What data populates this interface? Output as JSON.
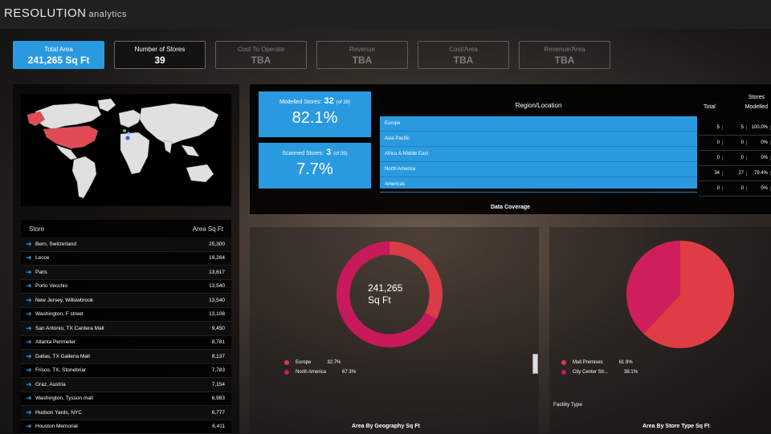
{
  "app": {
    "brand_main": "RESOLUTION",
    "brand_sub": "analytics"
  },
  "kpis": [
    {
      "label": "Total Area",
      "value": "241,265 Sq Ft"
    },
    {
      "label": "Number of Stores",
      "value": "39"
    },
    {
      "label": "Cost To Operate",
      "value": "TBA"
    },
    {
      "label": "Revenue",
      "value": "TBA"
    },
    {
      "label": "Cost/Area",
      "value": "TBA"
    },
    {
      "label": "Revenue/Area",
      "value": "TBA"
    }
  ],
  "map": {
    "highlight_color": "#e24b55",
    "land_color": "#e0e0e0"
  },
  "stores": {
    "col_store": "Store",
    "col_area": "Area Sq Ft",
    "rows": [
      {
        "name": "Bern, Switzerland",
        "area": "25,300"
      },
      {
        "name": "Lecce",
        "area": "19,264"
      },
      {
        "name": "Paris",
        "area": "13,617"
      },
      {
        "name": "Porto Vecchio",
        "area": "13,540"
      },
      {
        "name": "New Jersey, Willowbrook",
        "area": "13,540"
      },
      {
        "name": "Washington, F street",
        "area": "13,108"
      },
      {
        "name": "San Antonio, TX Cantera Mall",
        "area": "9,450"
      },
      {
        "name": "Atlanta Perimeter",
        "area": "8,781"
      },
      {
        "name": "Dallas, TX Galleria Mall",
        "area": "8,137"
      },
      {
        "name": "Frisco, TX, Stonebriar",
        "area": "7,783"
      },
      {
        "name": "Graz, Austria",
        "area": "7,154"
      },
      {
        "name": "Washington, Tysson mall",
        "area": "6,983"
      },
      {
        "name": "Hudson Yards, NYC",
        "area": "6,777"
      },
      {
        "name": "Houston Memorial",
        "area": "6,411"
      }
    ]
  },
  "coverage": {
    "modelled": {
      "label": "Modelled Stores:",
      "count": "32",
      "of": "(of 39)",
      "pct": "82.1%"
    },
    "scanned": {
      "label": "Scanned Stores:",
      "count": "3",
      "of": "(of 39)",
      "pct": "7.7%"
    },
    "region_title": "Region/Location",
    "stores_header": "Stores",
    "col_total": "Total",
    "col_modelled": "Modelled",
    "regions": [
      {
        "name": "Europe",
        "total": "5",
        "modelled": "5",
        "pct": "100.0%"
      },
      {
        "name": "Asia Pacific",
        "total": "0",
        "modelled": "0",
        "pct": "0%"
      },
      {
        "name": "Africa & Middle East",
        "total": "0",
        "modelled": "0",
        "pct": "0%"
      },
      {
        "name": "North America",
        "total": "34",
        "modelled": "27",
        "pct": "79.4%"
      },
      {
        "name": "Americas",
        "total": "0",
        "modelled": "0",
        "pct": "0%"
      }
    ],
    "title": "Data Coverage"
  },
  "geo_chart": {
    "center_value": "241,265",
    "center_unit": "Sq Ft",
    "title": "Area By Geography Sq Ft",
    "legend": [
      {
        "name": "Europe",
        "pct": "32.7%",
        "color": "#d93b47"
      },
      {
        "name": "North America",
        "pct": "67.3%",
        "color": "#c8195a"
      }
    ]
  },
  "type_chart": {
    "title": "Area By Store Type Sq Ft",
    "filter_label": "Facility Type",
    "legend": [
      {
        "name": "Mall Premises",
        "pct": "61.9%",
        "color": "#d93b47"
      },
      {
        "name": "City Center Str...",
        "pct": "38.1%",
        "color": "#c8195a"
      }
    ]
  },
  "chart_data": [
    {
      "type": "pie",
      "title": "Area By Geography Sq Ft",
      "categories": [
        "Europe",
        "North America"
      ],
      "values": [
        32.7,
        67.3
      ]
    },
    {
      "type": "pie",
      "title": "Area By Store Type Sq Ft",
      "categories": [
        "Mall Premises",
        "City Center Str..."
      ],
      "values": [
        61.9,
        38.1
      ]
    }
  ]
}
